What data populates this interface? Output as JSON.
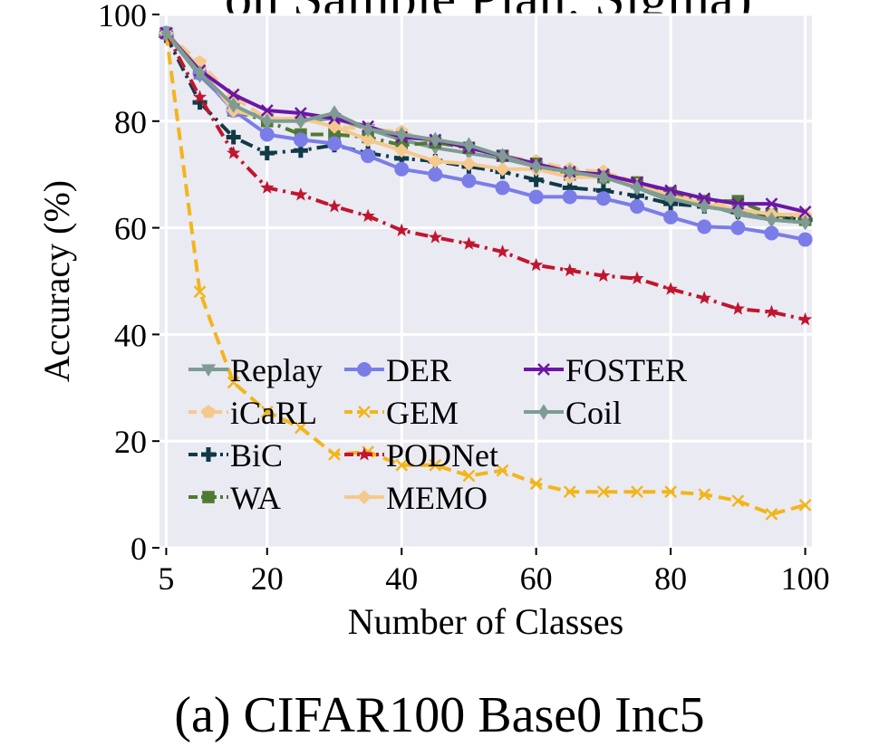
{
  "figure": {
    "caption": "(a) CIFAR100 Base0 Inc5",
    "top_text": "on Sample Plan: Sigma)"
  },
  "chart_data": {
    "type": "line",
    "xlabel": "Number of Classes",
    "ylabel": "Accuracy (%)",
    "xlim": [
      4,
      101
    ],
    "ylim": [
      0,
      100
    ],
    "xticks": [
      5,
      20,
      40,
      60,
      80,
      100
    ],
    "yticks": [
      0,
      20,
      40,
      60,
      80,
      100
    ],
    "grid": true,
    "background": "#eaeaf2",
    "legend_placement": "lower-left",
    "legend_columns": 3,
    "x": [
      5,
      10,
      15,
      20,
      25,
      30,
      35,
      40,
      45,
      50,
      55,
      60,
      65,
      70,
      75,
      80,
      85,
      90,
      95,
      100
    ],
    "series": [
      {
        "name": "Replay",
        "color": "#7e9c94",
        "marker": "triangle-down",
        "dash": "solid",
        "values": [
          96.5,
          88.5,
          82.5,
          80.5,
          80.0,
          80.5,
          78.5,
          76.5,
          75.0,
          74.0,
          73.0,
          71.5,
          70.5,
          69.5,
          67.5,
          65.0,
          64.5,
          62.5,
          61.5,
          61.0
        ]
      },
      {
        "name": "iCaRL",
        "color": "#f5c98e",
        "marker": "pentagon",
        "dash": "dashed",
        "values": [
          96.5,
          91.0,
          84.5,
          80.5,
          80.5,
          79.0,
          78.5,
          78.0,
          76.0,
          75.0,
          73.5,
          72.5,
          71.0,
          70.5,
          68.5,
          66.5,
          65.0,
          63.5,
          62.5,
          62.0
        ]
      },
      {
        "name": "BiC",
        "color": "#0f3a46",
        "marker": "plus",
        "dash": "dashdot",
        "values": [
          96.0,
          83.5,
          77.0,
          74.0,
          74.5,
          75.5,
          74.0,
          73.0,
          72.5,
          71.5,
          70.5,
          69.0,
          67.5,
          67.0,
          66.0,
          64.5,
          64.0,
          63.0,
          62.0,
          61.5
        ]
      },
      {
        "name": "WA",
        "color": "#4f7a33",
        "marker": "square",
        "dash": "dashdot",
        "values": [
          96.5,
          89.0,
          82.0,
          80.0,
          77.5,
          77.5,
          77.0,
          75.5,
          76.0,
          75.0,
          73.5,
          72.0,
          70.0,
          69.5,
          68.5,
          66.5,
          65.0,
          65.0,
          62.5,
          61.5
        ]
      },
      {
        "name": "DER",
        "color": "#7a7de8",
        "marker": "circle",
        "dash": "solid",
        "values": [
          96.5,
          89.0,
          82.0,
          77.5,
          76.5,
          75.8,
          73.5,
          71.0,
          70.0,
          68.8,
          67.5,
          65.8,
          65.8,
          65.5,
          64.0,
          62.0,
          60.2,
          60.0,
          59.0,
          57.8
        ]
      },
      {
        "name": "GEM",
        "color": "#f2b51c",
        "marker": "x",
        "dash": "dashed",
        "values": [
          96.5,
          48.0,
          31.0,
          25.5,
          22.5,
          17.5,
          18.0,
          15.5,
          15.5,
          13.5,
          14.5,
          12.0,
          10.5,
          10.5,
          10.5,
          10.5,
          10.0,
          8.8,
          6.3,
          8.0
        ]
      },
      {
        "name": "PODNet",
        "color": "#c0162f",
        "marker": "star",
        "dash": "dashdot",
        "values": [
          96.5,
          84.5,
          74.0,
          67.5,
          66.2,
          64.0,
          62.2,
          59.5,
          58.2,
          57.0,
          55.5,
          53.0,
          52.0,
          51.0,
          50.5,
          48.5,
          46.8,
          44.8,
          44.2,
          42.8
        ]
      },
      {
        "name": "MEMO",
        "color": "#f5c98e",
        "marker": "diamond",
        "dash": "solid",
        "values": [
          96.5,
          90.0,
          82.0,
          80.5,
          80.5,
          79.0,
          76.5,
          74.5,
          72.5,
          72.0,
          71.0,
          71.0,
          69.5,
          69.5,
          68.0,
          66.0,
          64.5,
          63.5,
          62.5,
          62.5
        ]
      },
      {
        "name": "FOSTER",
        "color": "#6b16a8",
        "marker": "x",
        "dash": "solid",
        "values": [
          96.5,
          89.5,
          85.0,
          82.0,
          81.5,
          80.5,
          79.0,
          77.0,
          76.5,
          75.0,
          73.5,
          72.0,
          70.5,
          70.0,
          68.5,
          67.0,
          65.5,
          64.5,
          64.5,
          63.0
        ]
      },
      {
        "name": "Coil",
        "color": "#7e9c94",
        "marker": "thin-diamond",
        "dash": "solid",
        "values": [
          96.5,
          89.0,
          83.0,
          80.0,
          80.0,
          81.5,
          78.5,
          77.5,
          76.5,
          75.5,
          73.5,
          71.5,
          70.5,
          69.5,
          67.5,
          65.5,
          64.0,
          63.0,
          61.5,
          61.0
        ]
      }
    ]
  }
}
